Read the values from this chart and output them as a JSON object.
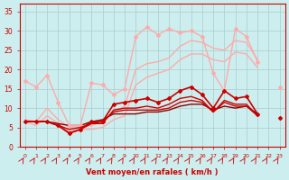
{
  "xlabel": "Vent moyen/en rafales ( km/h )",
  "x": [
    0,
    1,
    2,
    3,
    4,
    5,
    6,
    7,
    8,
    9,
    10,
    11,
    12,
    13,
    14,
    15,
    16,
    17,
    18,
    19,
    20,
    21,
    22,
    23
  ],
  "series": [
    {
      "y": [
        17,
        15.5,
        18.5,
        11.5,
        5.5,
        5.5,
        16.5,
        16,
        13.5,
        15,
        28.5,
        31,
        29,
        30.5,
        29.5,
        30,
        28.5,
        19,
        14.5,
        30.5,
        28.5,
        22,
        null,
        15.5
      ],
      "color": "#ffaaaa",
      "marker": "D",
      "markersize": 2,
      "linewidth": 1.0,
      "zorder": 3
    },
    {
      "y": [
        7,
        6.5,
        10,
        7,
        5,
        5,
        5.5,
        6.5,
        9,
        10.5,
        20,
        21.5,
        22,
        23,
        26,
        27.5,
        27,
        25.5,
        25,
        27.5,
        27,
        22.5,
        null,
        16
      ],
      "color": "#ffaaaa",
      "marker": null,
      "markersize": 0,
      "linewidth": 1.0,
      "zorder": 2
    },
    {
      "y": [
        6.5,
        5.5,
        8,
        6,
        4,
        4.5,
        4.5,
        5,
        7,
        8,
        16,
        18,
        19,
        20,
        22.5,
        24,
        24,
        22.5,
        22,
        24.5,
        24,
        20.5,
        null,
        14
      ],
      "color": "#ffaaaa",
      "marker": null,
      "markersize": 0,
      "linewidth": 1.0,
      "zorder": 2
    },
    {
      "y": [
        6.5,
        6.5,
        6.5,
        5.5,
        3.5,
        4.5,
        6.5,
        6.5,
        11,
        11.5,
        12,
        12.5,
        11.5,
        12.5,
        14.5,
        15.5,
        13.5,
        10,
        14.5,
        12.5,
        13,
        8.5,
        null,
        7.5
      ],
      "color": "#cc0000",
      "marker": "D",
      "markersize": 2,
      "linewidth": 1.2,
      "zorder": 4
    },
    {
      "y": [
        6.5,
        6.5,
        6.5,
        5.5,
        3.5,
        4.5,
        6.0,
        6.0,
        9.5,
        10,
        10,
        10.5,
        10,
        11,
        12.5,
        13,
        12,
        9,
        12,
        11,
        11,
        8,
        null,
        7
      ],
      "color": "#cc0000",
      "marker": null,
      "markersize": 0,
      "linewidth": 1.0,
      "zorder": 3
    },
    {
      "y": [
        6.5,
        6.5,
        6.5,
        5.5,
        4.5,
        5,
        6.0,
        6.5,
        9,
        9.5,
        9.5,
        9.5,
        9.5,
        10,
        11.5,
        12,
        11.5,
        9,
        11.5,
        10.5,
        10.5,
        8,
        null,
        7
      ],
      "color": "#cc0000",
      "marker": null,
      "markersize": 0,
      "linewidth": 1.0,
      "zorder": 3
    },
    {
      "y": [
        6.5,
        6.5,
        6.5,
        6,
        5.5,
        5.5,
        6.5,
        7,
        8.5,
        8.5,
        8.5,
        9,
        9,
        9.5,
        10.5,
        11,
        11,
        9.5,
        10.5,
        10,
        10.5,
        8.5,
        null,
        7.5
      ],
      "color": "#880000",
      "marker": null,
      "markersize": 0,
      "linewidth": 1.0,
      "zorder": 2
    }
  ],
  "ylim": [
    0,
    37
  ],
  "yticks": [
    0,
    5,
    10,
    15,
    20,
    25,
    30,
    35
  ],
  "xlim": [
    -0.5,
    23.5
  ],
  "bg_color": "#cceeee",
  "grid_color": "#aacccc",
  "axis_color": "#cc0000",
  "tick_color": "#cc0000",
  "label_color": "#cc0000",
  "wind_arrows": true
}
